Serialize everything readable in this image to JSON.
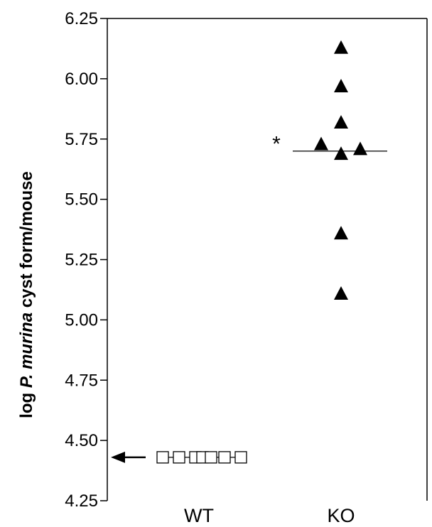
{
  "chart_data": {
    "type": "scatter",
    "title": "",
    "xlabel": "",
    "ylabel": {
      "prefix": "log ",
      "italic": "P. murina",
      "suffix": " cyst form/mouse"
    },
    "ylim": [
      4.25,
      6.25
    ],
    "yticks": [
      "4.25",
      "4.50",
      "4.75",
      "5.00",
      "5.25",
      "5.50",
      "5.75",
      "6.00",
      "6.25"
    ],
    "categories": [
      "WT",
      "KO"
    ],
    "grid": false,
    "legend": "none",
    "series": [
      {
        "category": "WT",
        "marker": "open-square",
        "values": [
          4.43,
          4.43,
          4.43,
          4.43,
          4.43,
          4.43,
          4.43
        ],
        "mean": 4.43
      },
      {
        "category": "KO",
        "marker": "filled-triangle",
        "values": [
          6.13,
          5.97,
          5.82,
          5.73,
          5.69,
          5.71,
          5.36,
          5.11
        ],
        "mean": 5.7
      }
    ],
    "annotations": [
      {
        "type": "significance",
        "text": "*",
        "category": "KO"
      },
      {
        "type": "arrow",
        "text": "",
        "points_to": 4.43,
        "note": "detection limit arrow"
      }
    ]
  }
}
